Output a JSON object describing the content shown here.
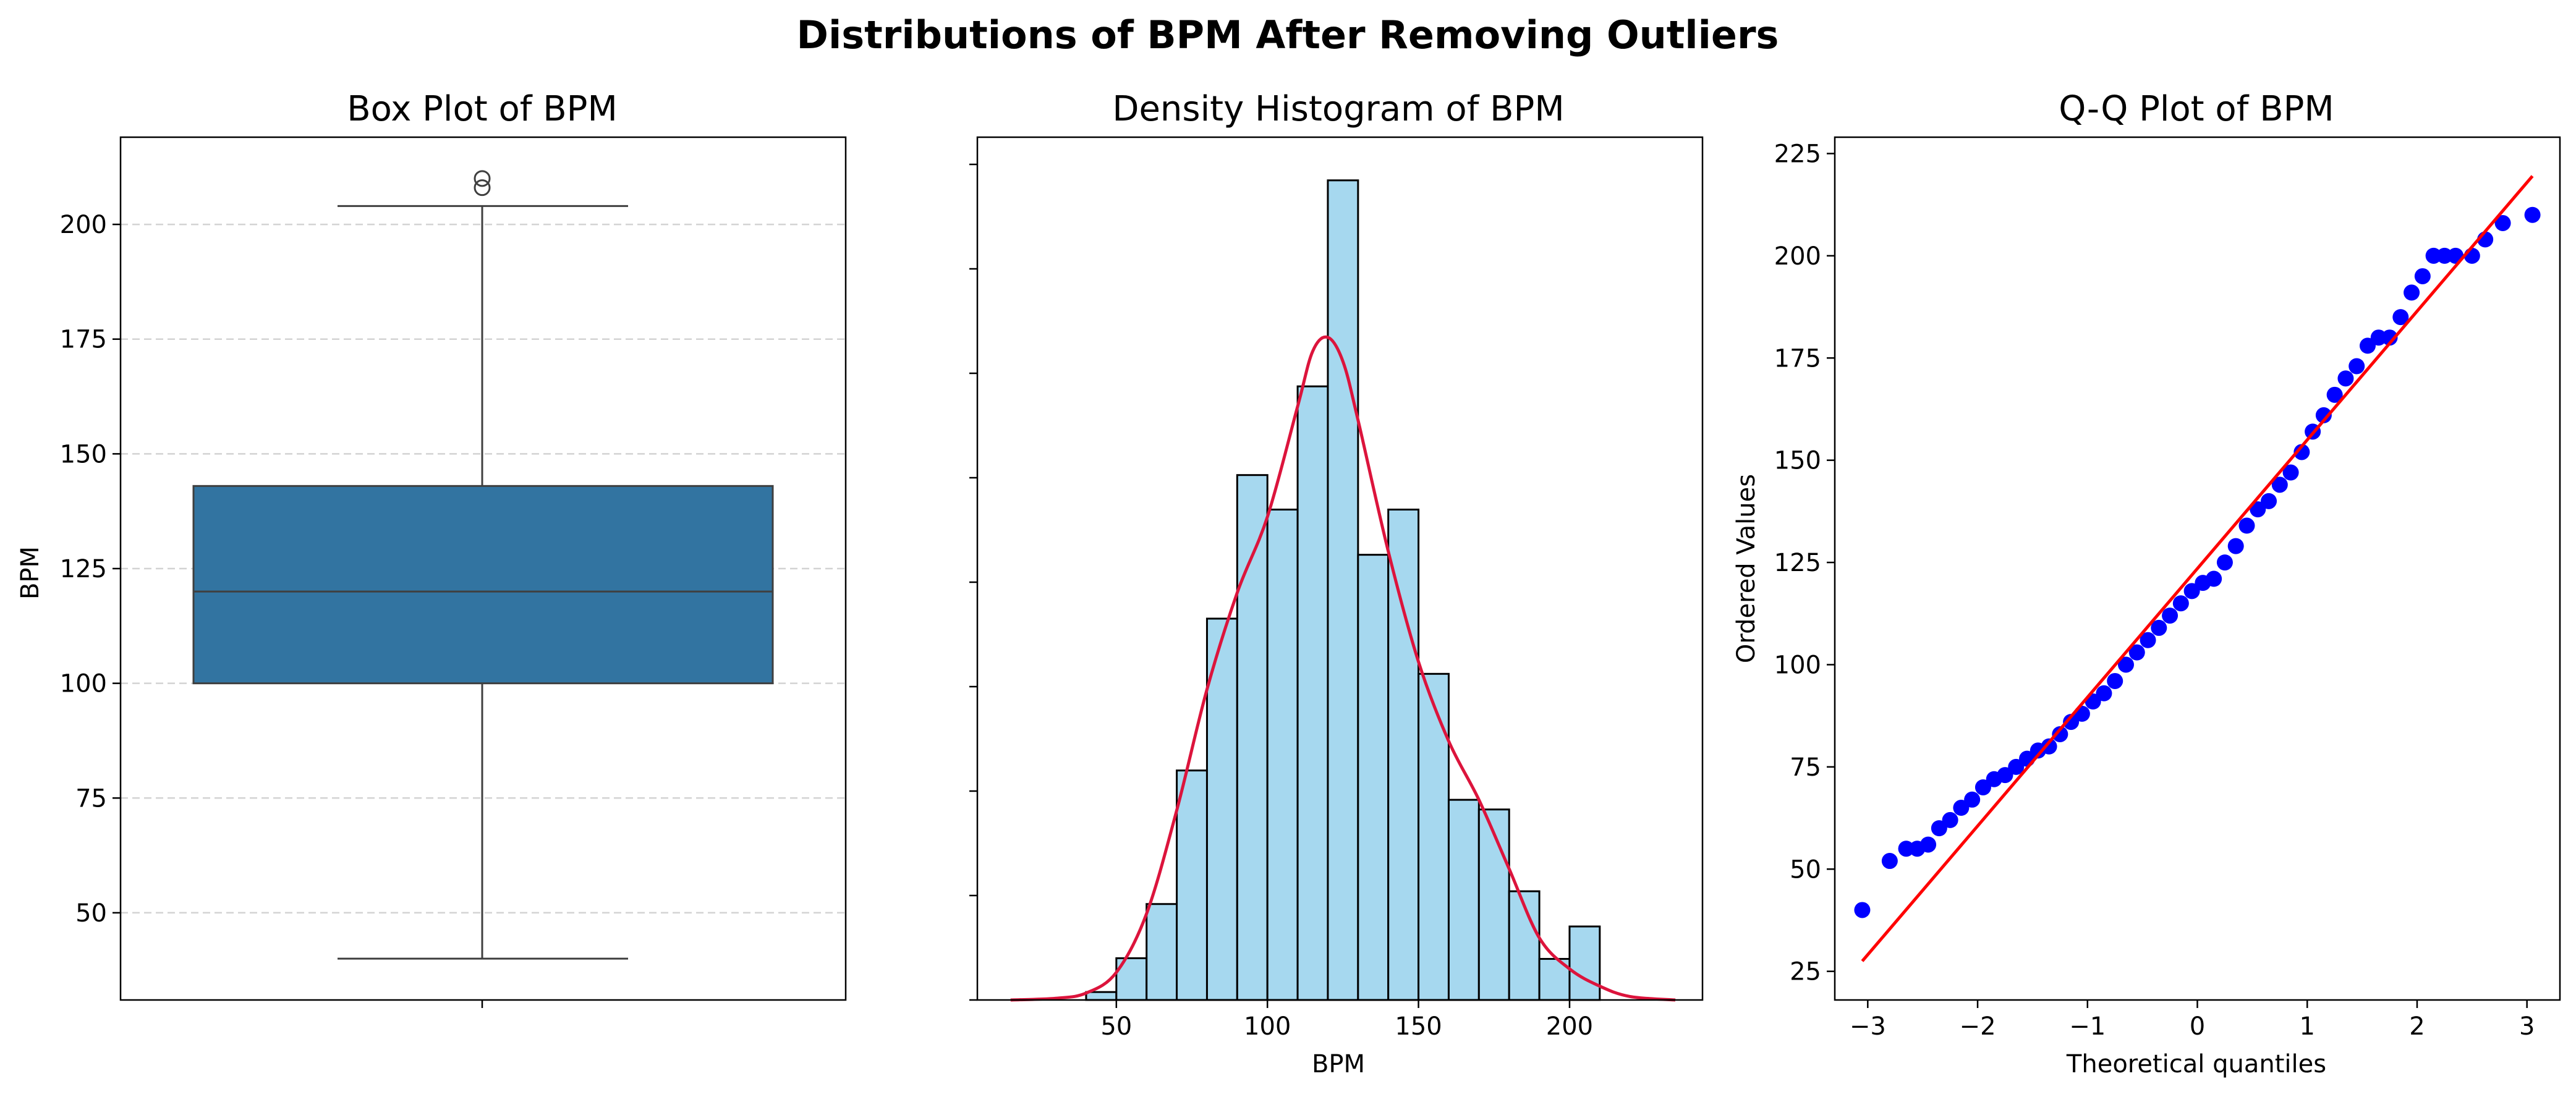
{
  "figure": {
    "suptitle": "Distributions of BPM After Removing Outliers"
  },
  "colors": {
    "box": "#3274a1",
    "hist_fill": "#a6d8ef",
    "kde": "#dc143c",
    "qq_points": "#0000ff",
    "qq_line": "#ff0000",
    "grid": "#d3d3d3"
  },
  "chart_data": [
    {
      "type": "box",
      "title": "Box Plot of BPM",
      "xlabel": "",
      "ylabel": "BPM",
      "ylim": [
        31,
        219
      ],
      "yticks": [
        50,
        75,
        100,
        125,
        150,
        175,
        200
      ],
      "grid": "y-dashed",
      "stats": {
        "whisker_low": 40,
        "q1": 100,
        "median": 120,
        "q3": 143,
        "whisker_high": 204
      },
      "outliers": [
        208,
        210
      ]
    },
    {
      "type": "histogram",
      "title": "Density Histogram of BPM",
      "xlabel": "BPM",
      "ylabel": "",
      "xlim": [
        4,
        244
      ],
      "xticks": [
        50,
        100,
        150,
        200
      ],
      "bins": [
        {
          "x0": 40,
          "x1": 50,
          "density": 0.00023
        },
        {
          "x0": 50,
          "x1": 60,
          "density": 0.00121
        },
        {
          "x0": 60,
          "x1": 70,
          "density": 0.00278
        },
        {
          "x0": 70,
          "x1": 80,
          "density": 0.00665
        },
        {
          "x0": 80,
          "x1": 90,
          "density": 0.01105
        },
        {
          "x0": 90,
          "x1": 100,
          "density": 0.01521
        },
        {
          "x0": 100,
          "x1": 110,
          "density": 0.01421
        },
        {
          "x0": 110,
          "x1": 120,
          "density": 0.01778
        },
        {
          "x0": 120,
          "x1": 130,
          "density": 0.02375
        },
        {
          "x0": 130,
          "x1": 140,
          "density": 0.0129
        },
        {
          "x0": 140,
          "x1": 150,
          "density": 0.01421
        },
        {
          "x0": 150,
          "x1": 160,
          "density": 0.00945
        },
        {
          "x0": 160,
          "x1": 170,
          "density": 0.0058
        },
        {
          "x0": 170,
          "x1": 180,
          "density": 0.00552
        },
        {
          "x0": 180,
          "x1": 190,
          "density": 0.00315
        },
        {
          "x0": 190,
          "x1": 200,
          "density": 0.00119
        },
        {
          "x0": 200,
          "x1": 210,
          "density": 0.00213
        }
      ],
      "kde": {
        "x": [
          15,
          30,
          40,
          50,
          60,
          70,
          80,
          90,
          100,
          110,
          115,
          120,
          125,
          130,
          140,
          150,
          160,
          170,
          180,
          190,
          200,
          210,
          220,
          235
        ],
        "y": [
          0.0,
          5e-05,
          0.0002,
          0.0008,
          0.0025,
          0.0055,
          0.009,
          0.0118,
          0.014,
          0.0172,
          0.0188,
          0.0192,
          0.0185,
          0.0168,
          0.013,
          0.0098,
          0.0075,
          0.0058,
          0.0038,
          0.0018,
          0.0009,
          0.0004,
          0.0001,
          0.0
        ]
      }
    },
    {
      "type": "scatter",
      "title": "Q-Q Plot of BPM",
      "xlabel": "Theoretical quantiles",
      "ylabel": "Ordered Values",
      "xlim": [
        -3.3,
        3.3
      ],
      "ylim": [
        18,
        229
      ],
      "xticks": [
        -3,
        -2,
        -1,
        0,
        1,
        2,
        3
      ],
      "yticks": [
        25,
        50,
        75,
        100,
        125,
        150,
        175,
        200,
        225
      ],
      "fit_line": {
        "x": [
          -3.05,
          3.05
        ],
        "y": [
          27.5,
          219.5
        ]
      },
      "points": {
        "x": [
          -3.05,
          -2.8,
          -2.65,
          -2.55,
          -2.45,
          -2.35,
          -2.25,
          -2.15,
          -2.05,
          -1.95,
          -1.85,
          -1.75,
          -1.65,
          -1.55,
          -1.45,
          -1.35,
          -1.25,
          -1.15,
          -1.05,
          -0.95,
          -0.85,
          -0.75,
          -0.65,
          -0.55,
          -0.45,
          -0.35,
          -0.25,
          -0.15,
          -0.05,
          0.05,
          0.15,
          0.25,
          0.35,
          0.45,
          0.55,
          0.65,
          0.75,
          0.85,
          0.95,
          1.05,
          1.15,
          1.25,
          1.35,
          1.45,
          1.55,
          1.65,
          1.75,
          1.85,
          1.95,
          2.05,
          2.15,
          2.25,
          2.35,
          2.5,
          2.62,
          2.78,
          3.05
        ],
        "y": [
          40,
          52,
          55,
          55,
          56,
          60,
          62,
          65,
          67,
          70,
          72,
          73,
          75,
          77,
          79,
          80,
          83,
          86,
          88,
          91,
          93,
          96,
          100,
          103,
          106,
          109,
          112,
          115,
          118,
          120,
          121,
          125,
          129,
          134,
          138,
          140,
          144,
          147,
          152,
          157,
          161,
          166,
          170,
          173,
          178,
          180,
          180,
          185,
          191,
          195,
          200,
          200,
          200,
          200,
          204,
          208,
          210
        ]
      }
    }
  ]
}
